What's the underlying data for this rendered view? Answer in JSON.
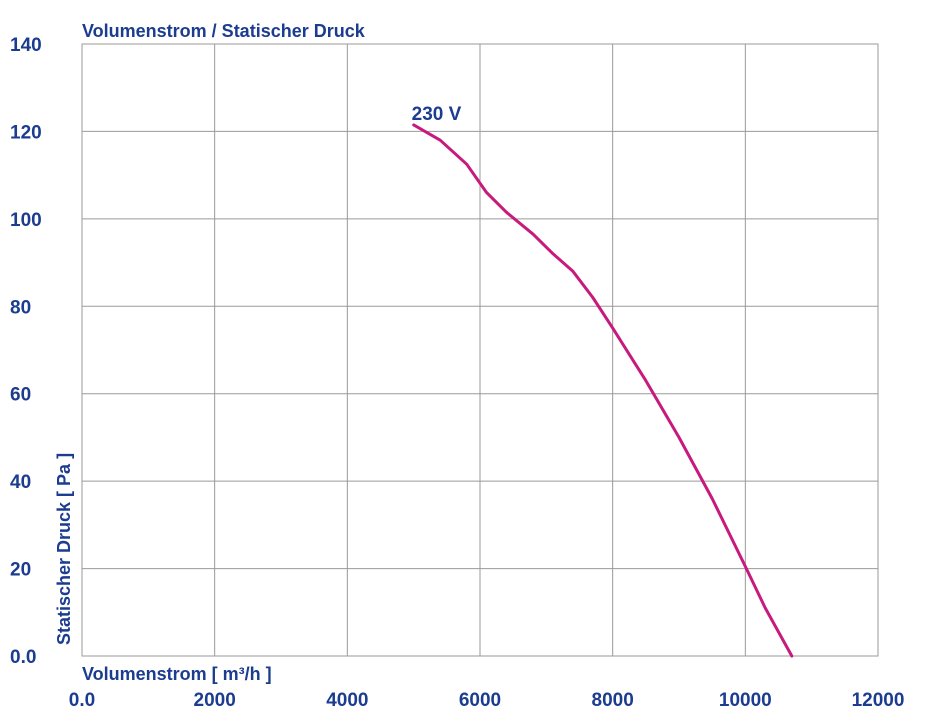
{
  "colors": {
    "text": "#1b3c8f",
    "grid": "#9a9a9a",
    "curve": "#c8197d"
  },
  "chart_data": {
    "type": "line",
    "title": "Volumenstrom / Statischer Druck",
    "xlabel": "Volumenstrom [ m³/h ]",
    "ylabel": "Statischer Druck [ Pa ]",
    "xlim": [
      0,
      12000
    ],
    "ylim": [
      0,
      140
    ],
    "x_ticks": [
      "0.0",
      "2000",
      "4000",
      "6000",
      "8000",
      "10000",
      "12000"
    ],
    "y_ticks": [
      "0.0",
      "20",
      "40",
      "60",
      "80",
      "100",
      "120",
      "140"
    ],
    "grid": true,
    "series": [
      {
        "name": "230 V",
        "x": [
          5000,
          5400,
          5800,
          6100,
          6400,
          6800,
          7100,
          7400,
          7700,
          8000,
          8500,
          9000,
          9500,
          10000,
          10300,
          10700
        ],
        "y": [
          121.5,
          118,
          112.5,
          106,
          101.5,
          96.5,
          92,
          88,
          82,
          75,
          63,
          50,
          36,
          20.5,
          11,
          0
        ]
      }
    ]
  }
}
